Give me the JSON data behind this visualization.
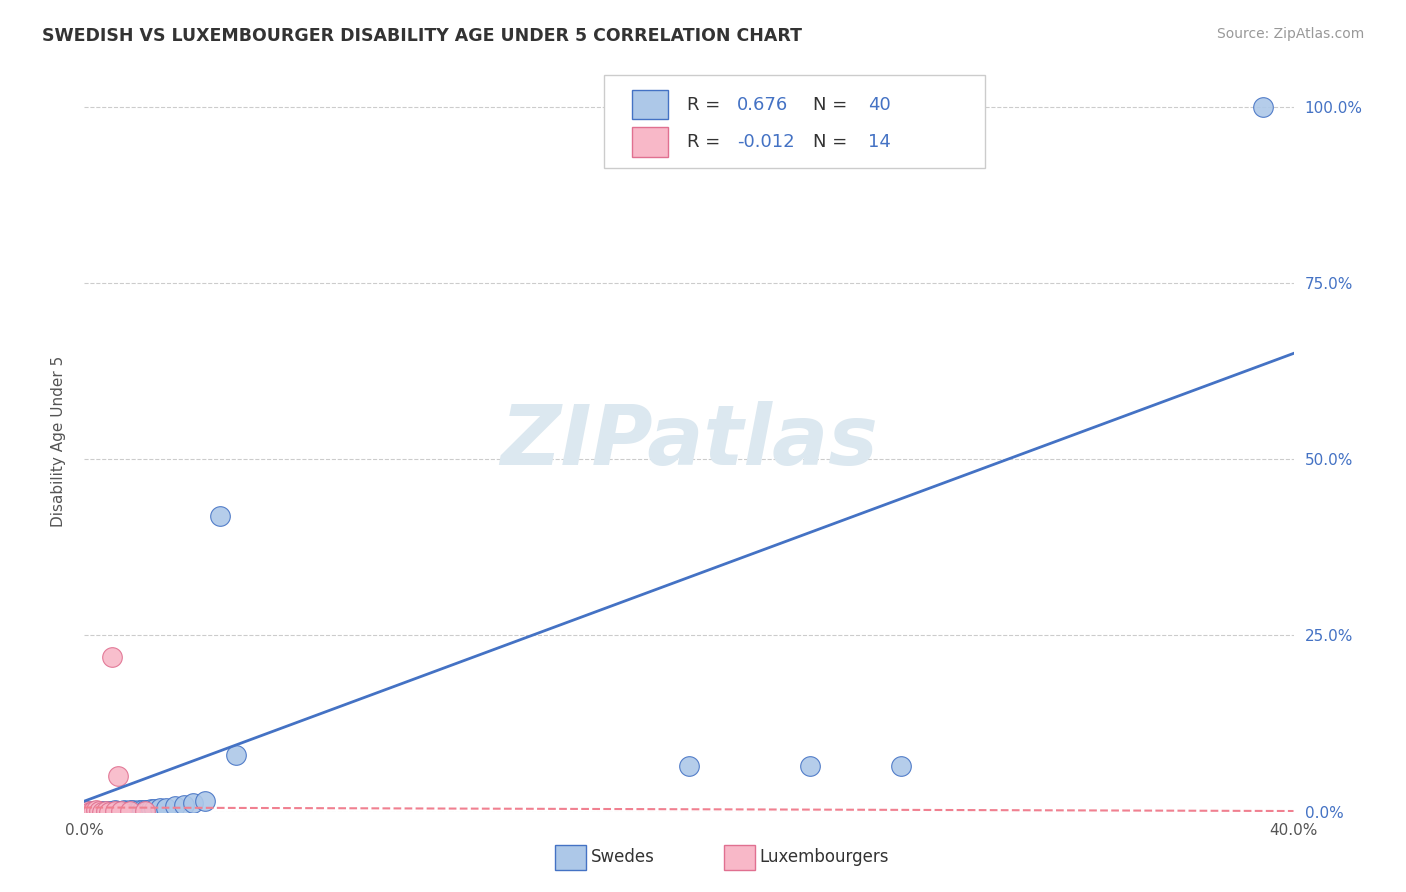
{
  "title": "SWEDISH VS LUXEMBOURGER DISABILITY AGE UNDER 5 CORRELATION CHART",
  "source": "Source: ZipAtlas.com",
  "ylabel": "Disability Age Under 5",
  "xlim": [
    0.0,
    0.4
  ],
  "ylim": [
    0.0,
    1.05
  ],
  "ytick_labels": [
    "0.0%",
    "25.0%",
    "50.0%",
    "75.0%",
    "100.0%"
  ],
  "ytick_vals": [
    0.0,
    0.25,
    0.5,
    0.75,
    1.0
  ],
  "xtick_labels": [
    "0.0%",
    "40.0%"
  ],
  "xtick_vals": [
    0.0,
    0.4
  ],
  "grid_color": "#cccccc",
  "background_color": "#ffffff",
  "swedish_color": "#adc8e8",
  "luxembourger_color": "#f8b8c8",
  "swedish_line_color": "#4472c4",
  "luxembourger_line_color": "#f08090",
  "r_swedish": 0.676,
  "n_swedish": 40,
  "r_luxembourger": -0.012,
  "n_luxembourger": 14,
  "watermark": "ZIPatlas",
  "swedish_x": [
    0.0,
    0.001,
    0.002,
    0.003,
    0.004,
    0.004,
    0.005,
    0.005,
    0.006,
    0.007,
    0.007,
    0.008,
    0.009,
    0.01,
    0.01,
    0.011,
    0.012,
    0.013,
    0.014,
    0.015,
    0.016,
    0.017,
    0.018,
    0.019,
    0.02,
    0.021,
    0.022,
    0.023,
    0.025,
    0.027,
    0.03,
    0.033,
    0.036,
    0.04,
    0.045,
    0.05,
    0.2,
    0.24,
    0.27,
    0.39
  ],
  "swedish_y": [
    0.0,
    0.001,
    0.0,
    0.001,
    0.0,
    0.001,
    0.001,
    0.0,
    0.001,
    0.0,
    0.001,
    0.001,
    0.0,
    0.001,
    0.002,
    0.001,
    0.001,
    0.002,
    0.001,
    0.002,
    0.002,
    0.001,
    0.003,
    0.002,
    0.003,
    0.003,
    0.004,
    0.004,
    0.005,
    0.005,
    0.008,
    0.01,
    0.013,
    0.015,
    0.42,
    0.08,
    0.065,
    0.065,
    0.065,
    1.0
  ],
  "luxembourger_x": [
    0.001,
    0.002,
    0.003,
    0.004,
    0.005,
    0.006,
    0.007,
    0.008,
    0.009,
    0.01,
    0.011,
    0.012,
    0.015,
    0.02
  ],
  "luxembourger_y": [
    0.001,
    0.0,
    0.001,
    0.002,
    0.001,
    0.0,
    0.001,
    0.0,
    0.22,
    0.001,
    0.05,
    0.001,
    0.001,
    0.001
  ]
}
